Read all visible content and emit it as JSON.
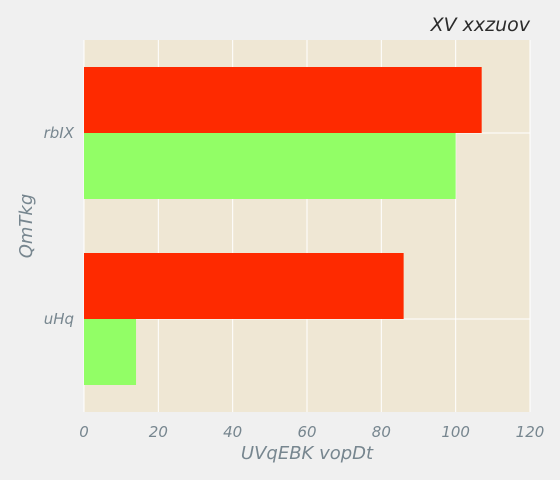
{
  "chart_data": {
    "type": "bar",
    "orientation": "horizontal",
    "title": "XV xxzuov",
    "xlabel": "UVqEBK vopDt",
    "ylabel": "QmTkg",
    "categories": [
      "rbIX",
      "uHq"
    ],
    "series": [
      {
        "color": "#fe2a00",
        "values": [
          107,
          86
        ]
      },
      {
        "color": "#92fe66",
        "values": [
          100,
          14
        ]
      }
    ],
    "xlim": [
      0,
      120
    ],
    "xticks": [
      0,
      20,
      40,
      60,
      80,
      100,
      120
    ],
    "grid": true,
    "plot_background": "#efe7d4",
    "page_background": "#f0f0f0"
  }
}
